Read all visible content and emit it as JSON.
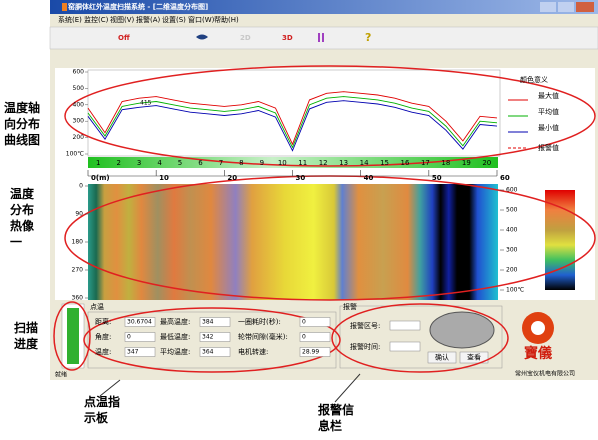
{
  "window": {
    "title": "窑胴体红外温度扫描系统 - [二维温度分布图]"
  },
  "menu": [
    "系统(E)",
    "监控(C)",
    "视图(V)",
    "报警(A)",
    "设置(S)",
    "窗口(W)",
    "帮助(H)"
  ],
  "toolbar": [
    "Off",
    "2D",
    "3D"
  ],
  "annotations": {
    "curve": "温度轴向分布曲线图",
    "heatmap": "温度分布热像一",
    "progress": "扫描进度",
    "point_panel": "点温指示板",
    "alarm_panel": "报警信息栏"
  },
  "chart_data": {
    "type": "line",
    "legend_title": "颜色意义",
    "alarm_legend": "报警值",
    "peak_label": "415",
    "x": [
      0,
      2.5,
      5,
      7.5,
      10,
      12.5,
      15,
      17.5,
      20,
      22.5,
      25,
      27.5,
      30,
      32.5,
      35,
      37.5,
      40,
      42.5,
      45,
      47.5,
      50,
      52.5,
      55,
      57.5,
      60
    ],
    "series": [
      {
        "name": "最大值",
        "color": "#e00000",
        "values": [
          380,
          230,
          420,
          440,
          450,
          430,
          410,
          400,
          390,
          400,
          420,
          380,
          160,
          430,
          470,
          480,
          470,
          460,
          440,
          410,
          390,
          300,
          180,
          330,
          320
        ]
      },
      {
        "name": "平均值",
        "color": "#00b000",
        "values": [
          350,
          210,
          390,
          410,
          420,
          400,
          380,
          370,
          360,
          370,
          390,
          350,
          140,
          400,
          440,
          450,
          440,
          430,
          410,
          380,
          360,
          270,
          150,
          300,
          290
        ]
      },
      {
        "name": "最小值",
        "color": "#0000b0",
        "values": [
          330,
          190,
          370,
          385,
          395,
          375,
          355,
          345,
          335,
          345,
          365,
          325,
          120,
          375,
          415,
          425,
          415,
          405,
          385,
          355,
          335,
          245,
          130,
          280,
          270
        ]
      }
    ],
    "xlim": [
      0,
      60
    ],
    "xticks": [
      {
        "value": 0,
        "label": "0(m)"
      },
      10,
      20,
      30,
      40,
      50,
      60
    ],
    "ylim": [
      100,
      600
    ],
    "yticks": [
      {
        "value": 100,
        "label": "100℃"
      },
      200,
      300,
      400,
      500,
      600
    ],
    "zones": [
      1,
      2,
      3,
      4,
      5,
      6,
      7,
      8,
      9,
      10,
      11,
      12,
      13,
      14,
      15,
      16,
      17,
      18,
      19,
      20
    ]
  },
  "heatmap": {
    "ylim": [
      0,
      360
    ],
    "yticks": [
      0,
      90,
      180,
      270,
      360
    ],
    "scale_lim": [
      100,
      600
    ],
    "scale_ticks": [
      600,
      500,
      400,
      300,
      200,
      {
        "value": 100,
        "label": "100℃"
      }
    ]
  },
  "progress": {
    "title": "点温"
  },
  "point_panel": {
    "rows": [
      [
        [
          "距离:",
          30.6704
        ],
        [
          "最高温度:",
          384
        ],
        [
          "一圈耗时(秒):",
          0
        ]
      ],
      [
        [
          "角度:",
          0
        ],
        [
          "最低温度:",
          342
        ],
        [
          "轮带间隙(毫米):",
          0
        ]
      ],
      [
        [
          "温度:",
          347
        ],
        [
          "平均温度:",
          364
        ],
        [
          "电机转速:",
          28.99
        ]
      ]
    ]
  },
  "alarm_panel": {
    "title": "报警",
    "zone_label": "报警区号:",
    "time_label": "报警时间:",
    "confirm": "确认",
    "view": "查看"
  },
  "logo": "寶儀",
  "company": "常州宝仪机电有限公司",
  "status": "就绪"
}
